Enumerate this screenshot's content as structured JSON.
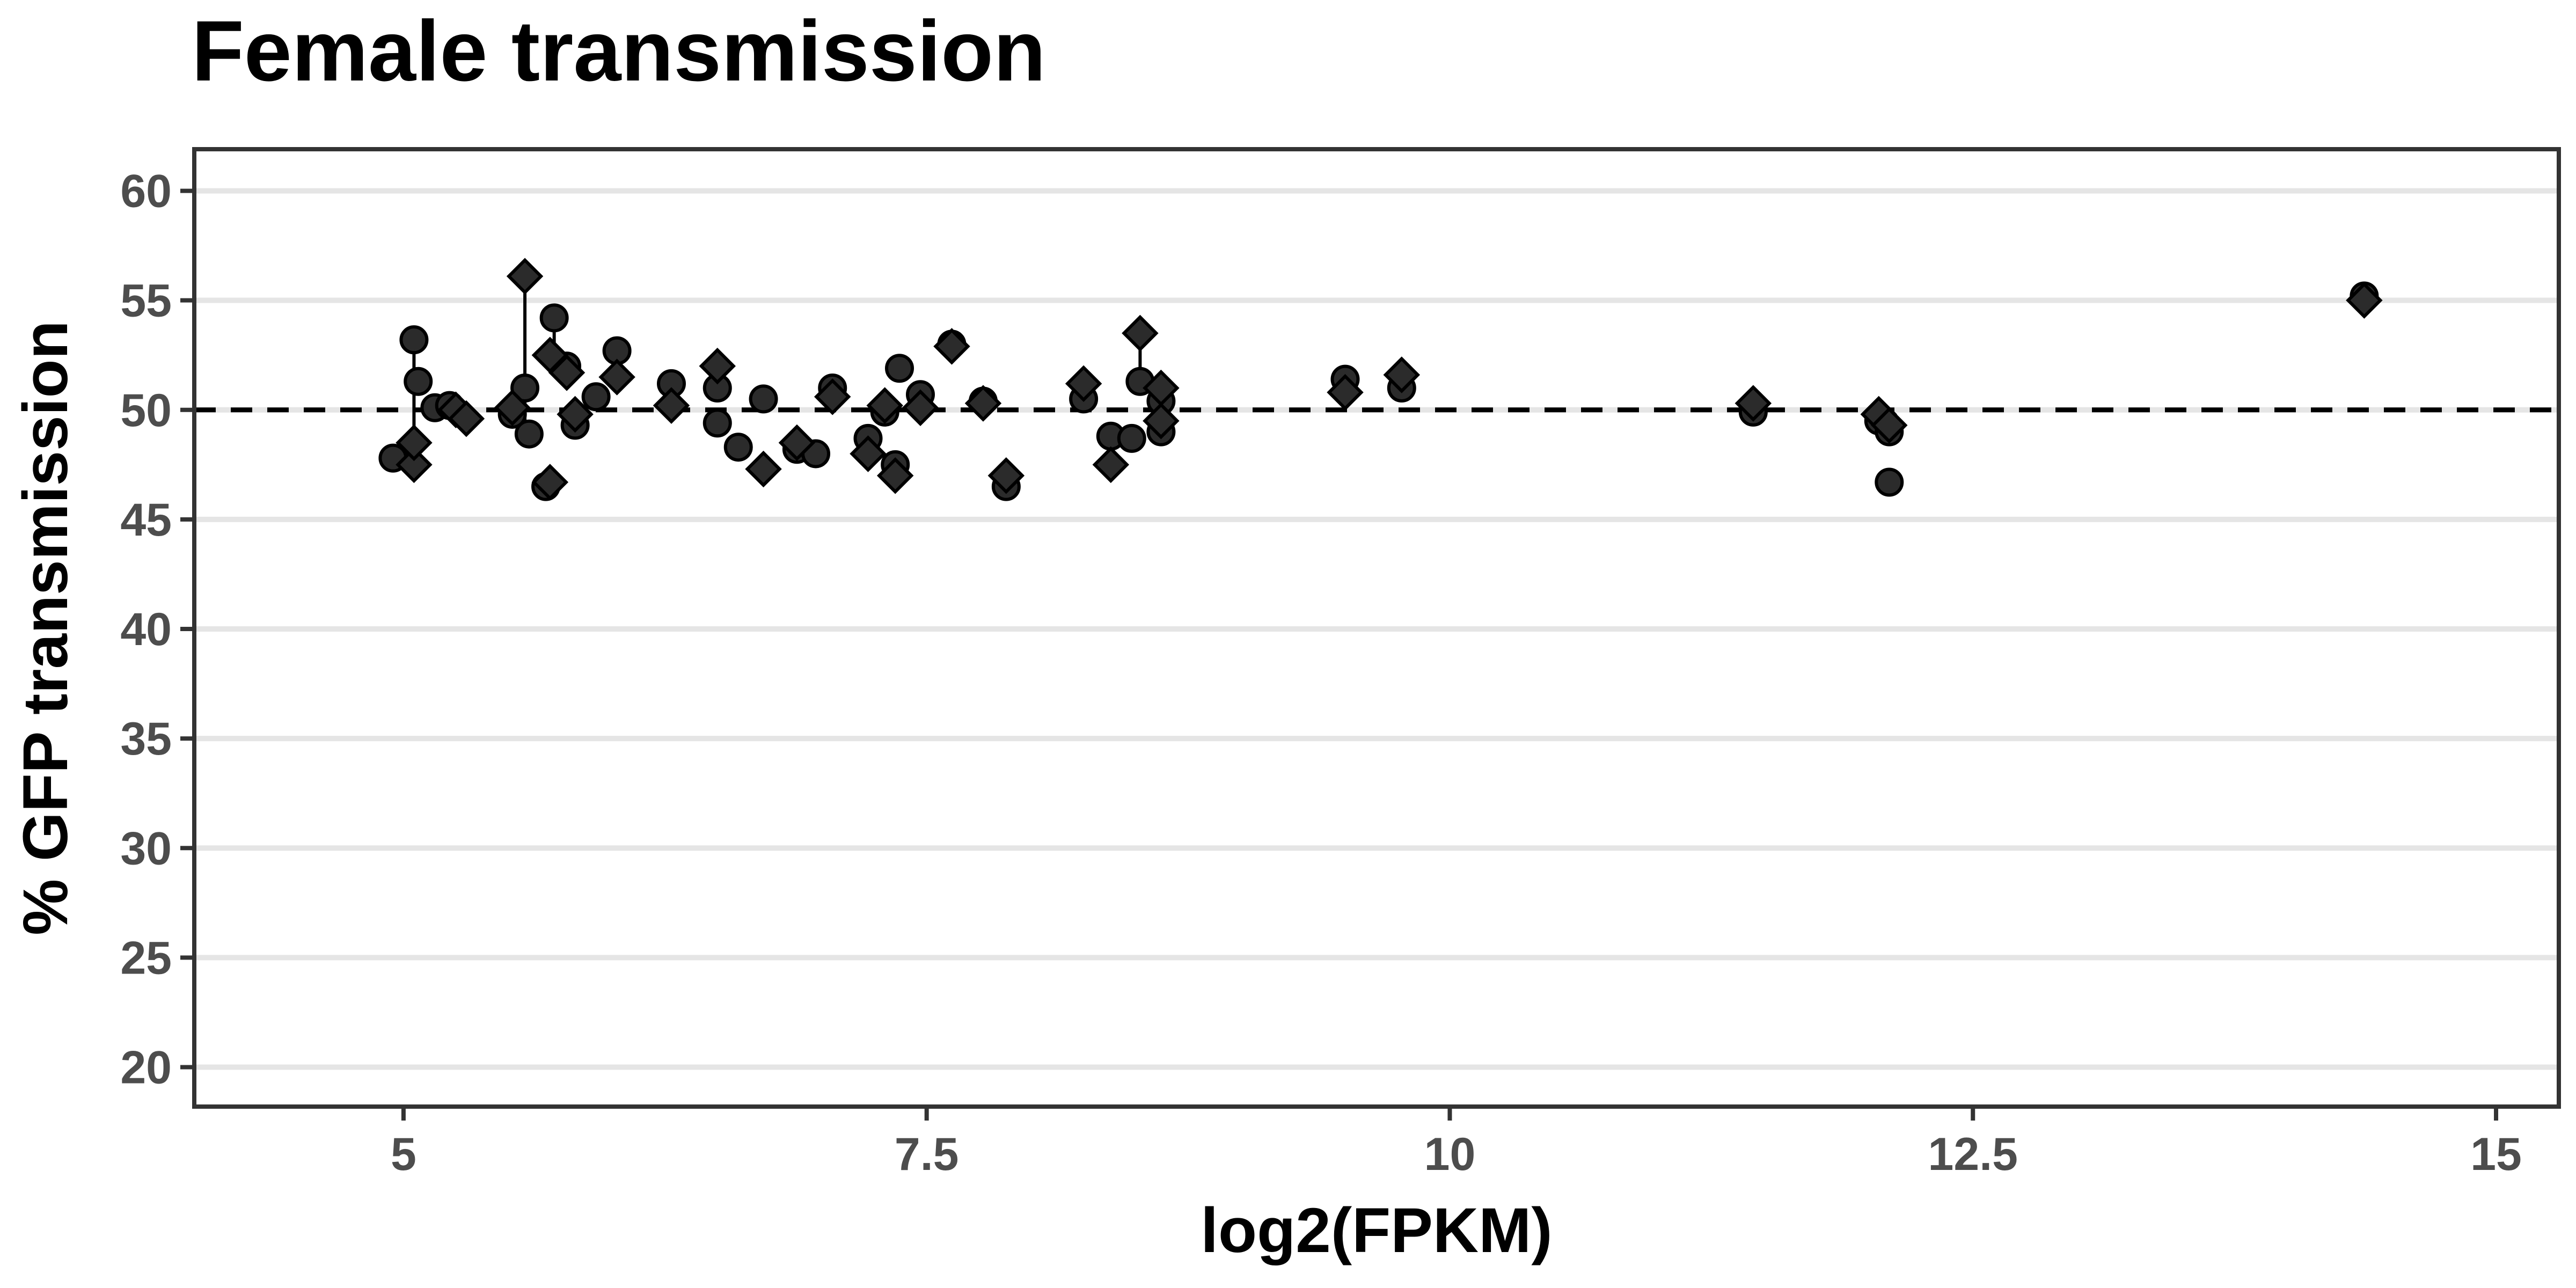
{
  "chart_data": {
    "type": "scatter",
    "title": "Female transmission",
    "xlabel": "log2(FPKM)",
    "ylabel": "% GFP transmission",
    "xlim": [
      4,
      15.3
    ],
    "ylim": [
      18.2,
      61.9
    ],
    "x_ticks": [
      5,
      7.5,
      10,
      12.5,
      15
    ],
    "x_tick_labels": [
      "5",
      "7.5",
      "10",
      "12.5",
      "15"
    ],
    "y_ticks": [
      20,
      25,
      30,
      35,
      40,
      45,
      50,
      55,
      60
    ],
    "y_tick_labels": [
      "20",
      "25",
      "30",
      "35",
      "40",
      "45",
      "50",
      "55",
      "60"
    ],
    "grid": "horizontal major",
    "reference_line": {
      "y": 50,
      "style": "dashed"
    },
    "legend": "none",
    "colors": {
      "point_fill": "#2b2b2b",
      "point_stroke": "#000000",
      "grid": "#e5e5e5",
      "panel_border": "#333333",
      "tick_label": "#4d4d4d"
    },
    "series": [
      {
        "shape": "circle",
        "points": [
          [
            4.95,
            47.8
          ],
          [
            5.05,
            53.2
          ],
          [
            5.07,
            51.3
          ],
          [
            5.15,
            50.1
          ],
          [
            5.22,
            50.2
          ],
          [
            5.52,
            49.8
          ],
          [
            5.58,
            51.0
          ],
          [
            5.6,
            48.9
          ],
          [
            5.68,
            46.5
          ],
          [
            5.72,
            54.2
          ],
          [
            5.78,
            52.0
          ],
          [
            5.82,
            49.3
          ],
          [
            5.92,
            50.6
          ],
          [
            6.02,
            52.7
          ],
          [
            6.28,
            51.2
          ],
          [
            6.5,
            51.0
          ],
          [
            6.5,
            49.4
          ],
          [
            6.6,
            48.3
          ],
          [
            6.72,
            50.5
          ],
          [
            6.88,
            48.2
          ],
          [
            6.97,
            48.0
          ],
          [
            7.05,
            51.0
          ],
          [
            7.22,
            48.7
          ],
          [
            7.3,
            49.9
          ],
          [
            7.35,
            47.5
          ],
          [
            7.37,
            51.9
          ],
          [
            7.47,
            50.7
          ],
          [
            7.62,
            53.0
          ],
          [
            7.77,
            50.4
          ],
          [
            7.88,
            46.5
          ],
          [
            8.25,
            50.5
          ],
          [
            8.38,
            48.8
          ],
          [
            8.48,
            48.7
          ],
          [
            8.52,
            51.3
          ],
          [
            8.62,
            50.4
          ],
          [
            8.62,
            49.0
          ],
          [
            9.5,
            51.4
          ],
          [
            9.77,
            51.0
          ],
          [
            11.45,
            49.9
          ],
          [
            12.05,
            49.5
          ],
          [
            12.1,
            49.0
          ],
          [
            12.1,
            46.7
          ],
          [
            14.37,
            55.2
          ]
        ]
      },
      {
        "shape": "diamond",
        "points": [
          [
            5.05,
            47.5
          ],
          [
            5.05,
            48.5
          ],
          [
            5.25,
            50.0
          ],
          [
            5.3,
            49.6
          ],
          [
            5.52,
            50.1
          ],
          [
            5.58,
            56.1
          ],
          [
            5.7,
            46.7
          ],
          [
            5.7,
            52.5
          ],
          [
            5.78,
            51.7
          ],
          [
            5.82,
            49.8
          ],
          [
            6.02,
            51.5
          ],
          [
            6.28,
            50.2
          ],
          [
            6.5,
            52.0
          ],
          [
            6.72,
            47.3
          ],
          [
            6.88,
            48.5
          ],
          [
            7.05,
            50.6
          ],
          [
            7.22,
            48.0
          ],
          [
            7.3,
            50.2
          ],
          [
            7.35,
            47.0
          ],
          [
            7.47,
            50.1
          ],
          [
            7.62,
            52.9
          ],
          [
            7.77,
            50.3
          ],
          [
            7.88,
            47.0
          ],
          [
            8.25,
            51.2
          ],
          [
            8.38,
            47.5
          ],
          [
            8.52,
            53.5
          ],
          [
            8.62,
            51.0
          ],
          [
            8.62,
            49.5
          ],
          [
            9.5,
            50.8
          ],
          [
            9.77,
            51.6
          ],
          [
            11.45,
            50.3
          ],
          [
            12.05,
            49.8
          ],
          [
            12.1,
            49.3
          ],
          [
            14.37,
            55.0
          ]
        ]
      }
    ],
    "segments": [
      [
        5.05,
        47.5,
        5.05,
        53.2
      ],
      [
        5.58,
        49.0,
        5.58,
        56.1
      ],
      [
        5.72,
        52.5,
        5.72,
        54.2
      ],
      [
        8.52,
        51.3,
        8.52,
        53.5
      ]
    ]
  }
}
